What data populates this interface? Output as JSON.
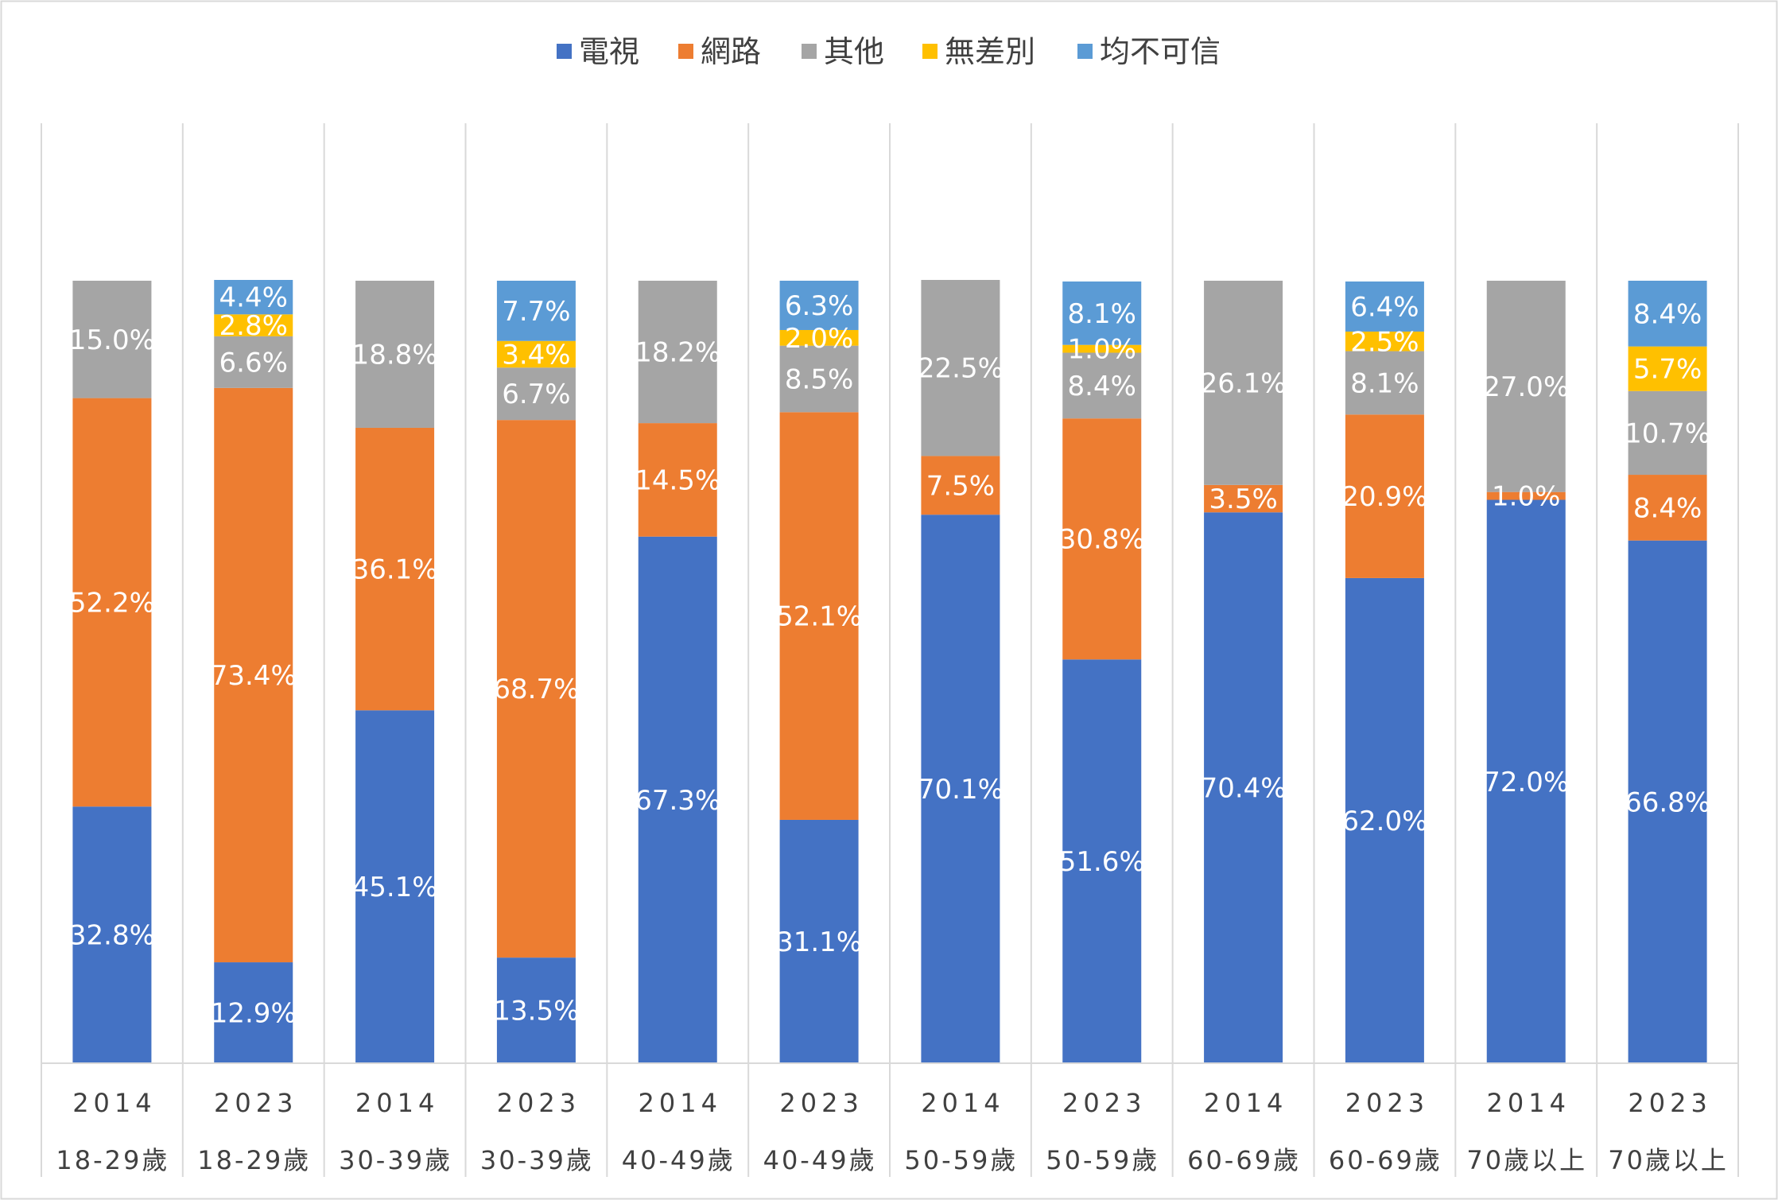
{
  "chart_data": {
    "type": "bar",
    "stacked": true,
    "percent_stacked": true,
    "ylim": [
      0,
      100
    ],
    "grid": "vertical",
    "legend_position": "top",
    "unit": "%",
    "categories": [
      {
        "year": "2014",
        "group": "18-29歲"
      },
      {
        "year": "2023",
        "group": "18-29歲"
      },
      {
        "year": "2014",
        "group": "30-39歲"
      },
      {
        "year": "2023",
        "group": "30-39歲"
      },
      {
        "year": "2014",
        "group": "40-49歲"
      },
      {
        "year": "2023",
        "group": "40-49歲"
      },
      {
        "year": "2014",
        "group": "50-59歲"
      },
      {
        "year": "2023",
        "group": "50-59歲"
      },
      {
        "year": "2014",
        "group": "60-69歲"
      },
      {
        "year": "2023",
        "group": "60-69歲"
      },
      {
        "year": "2014",
        "group": "70歲以上"
      },
      {
        "year": "2023",
        "group": "70歲以上"
      }
    ],
    "series": [
      {
        "name": "電視",
        "color": "#4472C4",
        "values": [
          32.8,
          12.9,
          45.1,
          13.5,
          67.3,
          31.1,
          70.1,
          51.6,
          70.4,
          62.0,
          72.0,
          66.8
        ],
        "labels": [
          "32.8%",
          "12.9%",
          "45.1%",
          "13.5%",
          "67.3%",
          "31.1%",
          "70.1%",
          "51.6%",
          "70.4%",
          "62.0%",
          "72.0%",
          "66.8%"
        ]
      },
      {
        "name": "網路",
        "color": "#ED7D31",
        "values": [
          52.2,
          73.4,
          36.1,
          68.7,
          14.5,
          52.1,
          7.5,
          30.8,
          3.5,
          20.9,
          1.0,
          8.4
        ],
        "labels": [
          "52.2%",
          "73.4%",
          "36.1%",
          "68.7%",
          "14.5%",
          "52.1%",
          "7.5%",
          "30.8%",
          "3.5%",
          "20.9%",
          "1.0%",
          "8.4%"
        ]
      },
      {
        "name": "其他",
        "color": "#A5A5A5",
        "values": [
          15.0,
          6.6,
          18.8,
          6.7,
          18.2,
          8.5,
          22.5,
          8.4,
          26.1,
          8.1,
          27.0,
          10.7
        ],
        "labels": [
          "15.0%",
          "6.6%",
          "18.8%",
          "6.7%",
          "18.2%",
          "8.5%",
          "22.5%",
          "8.4%",
          "26.1%",
          "8.1%",
          "27.0%",
          "10.7%"
        ]
      },
      {
        "name": "無差別",
        "color": "#FFC000",
        "values": [
          0,
          2.8,
          0,
          3.4,
          0,
          2.0,
          0,
          1.0,
          0,
          2.5,
          0,
          5.7
        ],
        "labels": [
          "",
          "2.8%",
          "",
          "3.4%",
          "",
          "2.0%",
          "",
          "1.0%",
          "",
          "2.5%",
          "",
          "5.7%"
        ]
      },
      {
        "name": "均不可信",
        "color": "#5B9BD5",
        "values": [
          0,
          4.4,
          0,
          7.7,
          0,
          6.3,
          0,
          8.1,
          0,
          6.4,
          0,
          8.4
        ],
        "labels": [
          "",
          "4.4%",
          "",
          "7.7%",
          "",
          "6.3%",
          "",
          "8.1%",
          "",
          "6.4%",
          "",
          "8.4%"
        ]
      }
    ]
  }
}
